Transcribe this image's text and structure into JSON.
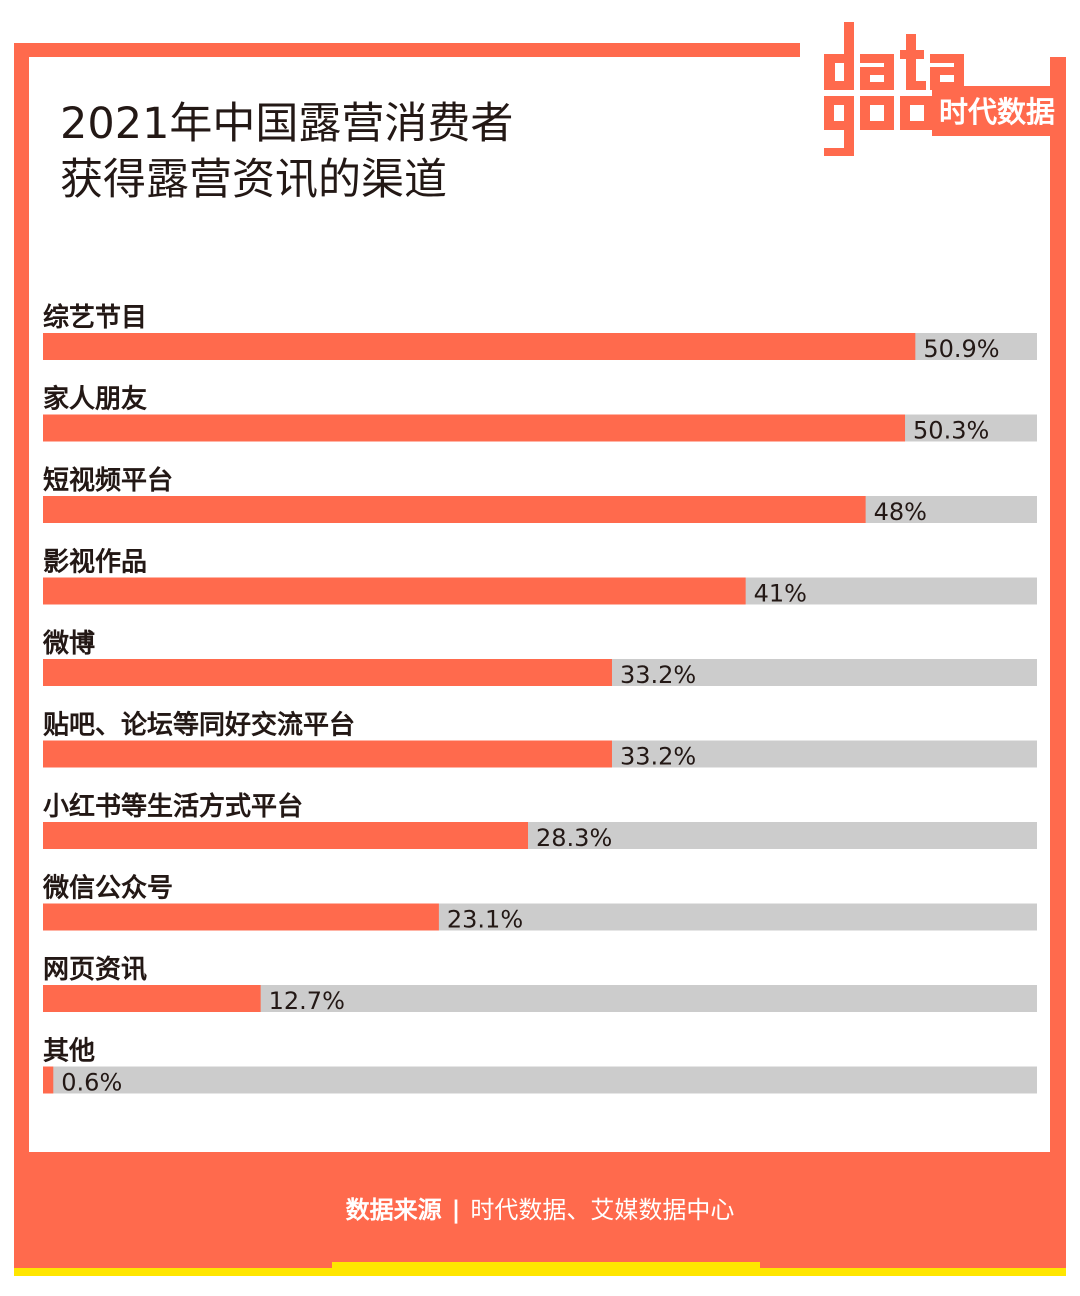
{
  "brand": {
    "logo_text": "datagoo",
    "logo_cn": "时代数据"
  },
  "title": {
    "line1": "2021年中国露营消费者",
    "line2": "获得露营资讯的渠道"
  },
  "colors": {
    "accent": "#ff6a4d",
    "track": "#cccccc",
    "text": "#231815",
    "highlight": "#ffe600"
  },
  "chart_data": {
    "type": "bar",
    "orientation": "horizontal",
    "categories": [
      "综艺节目",
      "家人朋友",
      "短视频平台",
      "影视作品",
      "微博",
      "贴吧、论坛等同好交流平台",
      "小红书等生活方式平台",
      "微信公众号",
      "网页资讯",
      "其他"
    ],
    "values": [
      50.9,
      50.3,
      48,
      41,
      33.2,
      33.2,
      28.3,
      23.1,
      12.7,
      0.6
    ],
    "value_labels": [
      "50.9%",
      "50.3%",
      "48%",
      "41%",
      "33.2%",
      "33.2%",
      "28.3%",
      "23.1%",
      "12.7%",
      "0.6%"
    ],
    "unit": "%",
    "xlim": [
      0,
      58
    ],
    "grid": false,
    "legend": "none"
  },
  "footer": {
    "source_label": "数据来源",
    "separator": "|",
    "source_text": "时代数据、艾媒数据中心"
  }
}
